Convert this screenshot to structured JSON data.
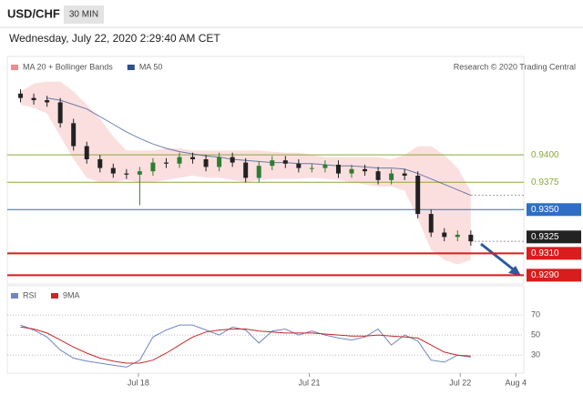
{
  "header": {
    "symbol": "USD/CHF",
    "interval": "30 MIN",
    "date": "Wednesday, July 22, 2020 2:29:40 AM CET"
  },
  "chart_data": [
    {
      "type": "candlestick",
      "credit": "Research © 2020 Trading Central",
      "xlim": [
        -1,
        38
      ],
      "ylim": [
        0.9282,
        0.949
      ],
      "up_color": "#2e7d32",
      "down_color": "#222222",
      "open": [
        0.9456,
        0.9452,
        0.945,
        0.9448,
        0.9429,
        0.9408,
        0.9396,
        0.9388,
        0.9383,
        0.9382,
        0.9385,
        0.9393,
        0.9392,
        0.9398,
        0.9396,
        0.9389,
        0.9398,
        0.9393,
        0.9379,
        0.939,
        0.9395,
        0.9392,
        0.9388,
        0.9388,
        0.9391,
        0.9383,
        0.9387,
        0.9385,
        0.9377,
        0.9383,
        0.9381,
        0.9346,
        0.9329,
        0.9325,
        0.9327
      ],
      "high": [
        0.946,
        0.9456,
        0.9454,
        0.9452,
        0.9433,
        0.9412,
        0.94,
        0.9392,
        0.9387,
        0.9389,
        0.9397,
        0.9397,
        0.9402,
        0.9402,
        0.94,
        0.9402,
        0.9402,
        0.9397,
        0.9394,
        0.9399,
        0.9399,
        0.9396,
        0.9392,
        0.9395,
        0.9395,
        0.9391,
        0.9391,
        0.9389,
        0.9387,
        0.9387,
        0.9385,
        0.935,
        0.9333,
        0.9331,
        0.9331
      ],
      "low": [
        0.9448,
        0.9446,
        0.9444,
        0.9425,
        0.9404,
        0.9392,
        0.9384,
        0.9379,
        0.9378,
        0.9354,
        0.9381,
        0.9388,
        0.9388,
        0.9392,
        0.9385,
        0.9385,
        0.9389,
        0.9375,
        0.9375,
        0.9386,
        0.9388,
        0.9384,
        0.9384,
        0.9384,
        0.9379,
        0.9379,
        0.9381,
        0.9373,
        0.9373,
        0.9377,
        0.9342,
        0.9325,
        0.9321,
        0.9321,
        0.9317
      ],
      "close": [
        0.9452,
        0.945,
        0.9448,
        0.9429,
        0.9408,
        0.9396,
        0.9388,
        0.9383,
        0.9382,
        0.9385,
        0.9393,
        0.9392,
        0.9398,
        0.9396,
        0.9389,
        0.9398,
        0.9393,
        0.9379,
        0.939,
        0.9395,
        0.9392,
        0.9388,
        0.9388,
        0.9391,
        0.9383,
        0.9387,
        0.9385,
        0.9377,
        0.9383,
        0.9381,
        0.9346,
        0.9329,
        0.9325,
        0.9327,
        0.9321
      ],
      "bands": {
        "name": "MA 20 + Bollinger Bands",
        "color": "#f08c8c",
        "upper": [
          0.9458,
          0.9465,
          0.9467,
          0.9467,
          0.9458,
          0.9446,
          0.9433,
          0.9417,
          0.9404,
          0.9404,
          0.9404,
          0.9406,
          0.9406,
          0.9404,
          0.9404,
          0.9404,
          0.9404,
          0.9404,
          0.9404,
          0.9403,
          0.9402,
          0.9402,
          0.94,
          0.9398,
          0.9398,
          0.9398,
          0.9398,
          0.9398,
          0.9396,
          0.94,
          0.9408,
          0.9408,
          0.94,
          0.9388,
          0.9367
        ],
        "lower": [
          0.9446,
          0.9443,
          0.9438,
          0.9417,
          0.9396,
          0.9379,
          0.9375,
          0.9375,
          0.9377,
          0.9375,
          0.9375,
          0.9377,
          0.9379,
          0.9381,
          0.9379,
          0.9379,
          0.9377,
          0.9375,
          0.9377,
          0.9378,
          0.9378,
          0.9378,
          0.9379,
          0.9378,
          0.9377,
          0.9375,
          0.9373,
          0.9371,
          0.9371,
          0.9367,
          0.9342,
          0.9313,
          0.9304,
          0.93,
          0.9304
        ]
      },
      "series": [
        {
          "name": "MA 50",
          "color": "#2d4f8e",
          "values": [
            null,
            null,
            0.9452,
            0.945,
            0.9446,
            0.9442,
            0.9435,
            0.9428,
            0.9421,
            0.9415,
            0.941,
            0.9406,
            0.9403,
            0.9401,
            0.9399,
            0.9398,
            0.9396,
            0.9395,
            0.9394,
            0.9393,
            0.9393,
            0.9392,
            0.9392,
            0.9391,
            0.939,
            0.939,
            0.9389,
            0.9388,
            0.9388,
            0.9387,
            0.9383,
            0.9378,
            0.9373,
            0.9368,
            0.9363
          ]
        }
      ],
      "levels": [
        {
          "value": 0.94,
          "label": "0.9400",
          "color": "#8aa83a",
          "line": true,
          "boxed": false
        },
        {
          "value": 0.9375,
          "label": "0.9375",
          "color": "#8aa83a",
          "line": true,
          "boxed": false
        },
        {
          "value": 0.935,
          "label": "0.9350",
          "color": "#2e6fc4",
          "line": true,
          "boxed": true
        },
        {
          "value": 0.9325,
          "label": "0.9325",
          "color": "#222222",
          "line": false,
          "boxed": true
        },
        {
          "value": 0.931,
          "label": "0.9310",
          "color": "#d91c1c",
          "line": true,
          "boxed": true
        },
        {
          "value": 0.929,
          "label": "0.9290",
          "color": "#d91c1c",
          "line": true,
          "boxed": true
        }
      ]
    },
    {
      "type": "line",
      "xlim": [
        -1,
        38
      ],
      "ylim": [
        12,
        100
      ],
      "yticks": [
        30,
        50,
        70
      ],
      "grid": true,
      "xticks": [
        {
          "value": 8.9,
          "label": "Jul 18"
        },
        {
          "value": 21.8,
          "label": "Jul 21"
        },
        {
          "value": 33.2,
          "label": "Jul 22"
        },
        {
          "value": 37.4,
          "label": "Aug 4"
        }
      ],
      "series": [
        {
          "name": "RSI",
          "color": "#6f86c0",
          "values": [
            60,
            55,
            48,
            35,
            27,
            24,
            22,
            20,
            18,
            25,
            48,
            55,
            60,
            60,
            55,
            50,
            58,
            55,
            42,
            54,
            56,
            50,
            54,
            50,
            47,
            45,
            48,
            56,
            40,
            50,
            44,
            25,
            23,
            30,
            28
          ]
        },
        {
          "name": "9MA",
          "color": "#c62828",
          "values": [
            58,
            56,
            52,
            45,
            38,
            32,
            27,
            24,
            22,
            22,
            25,
            32,
            40,
            48,
            53,
            55,
            56,
            56,
            54,
            53,
            52,
            52,
            52,
            51,
            50,
            49,
            49,
            50,
            49,
            48,
            47,
            40,
            33,
            30,
            29
          ]
        }
      ]
    }
  ]
}
